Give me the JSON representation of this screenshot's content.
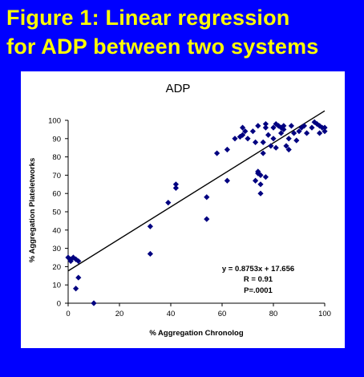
{
  "slide": {
    "title_line1": "Figure 1: Linear regression",
    "title_line2": "for ADP between two systems",
    "background_color": "#0000ff",
    "title_color": "#ffff00"
  },
  "chart_data": {
    "type": "scatter",
    "title": "ADP",
    "xlabel": "% Aggregation Chronolog",
    "ylabel": "% Aggregation Plateletworks",
    "xlim": [
      0,
      100
    ],
    "ylim": [
      0,
      100
    ],
    "xticks": [
      0,
      20,
      40,
      60,
      80,
      100
    ],
    "yticks": [
      0,
      10,
      20,
      30,
      40,
      50,
      60,
      70,
      80,
      90,
      100
    ],
    "grid": false,
    "marker": "diamond",
    "marker_color": "#000080",
    "points": [
      [
        0,
        25
      ],
      [
        1,
        24
      ],
      [
        1,
        23
      ],
      [
        2,
        25
      ],
      [
        3,
        24
      ],
      [
        3,
        8
      ],
      [
        4,
        23
      ],
      [
        4,
        14
      ],
      [
        10,
        0
      ],
      [
        32,
        42
      ],
      [
        32,
        27
      ],
      [
        39,
        55
      ],
      [
        42,
        65
      ],
      [
        42,
        63
      ],
      [
        54,
        58
      ],
      [
        54,
        46
      ],
      [
        58,
        82
      ],
      [
        62,
        84
      ],
      [
        62,
        67
      ],
      [
        65,
        90
      ],
      [
        67,
        91
      ],
      [
        68,
        96
      ],
      [
        68,
        92
      ],
      [
        69,
        94
      ],
      [
        70,
        90
      ],
      [
        72,
        94
      ],
      [
        73,
        67
      ],
      [
        73,
        88
      ],
      [
        74,
        97
      ],
      [
        74,
        72
      ],
      [
        74,
        71
      ],
      [
        75,
        70
      ],
      [
        75,
        60
      ],
      [
        75,
        65
      ],
      [
        76,
        82
      ],
      [
        76,
        88
      ],
      [
        77,
        98
      ],
      [
        77,
        69
      ],
      [
        77,
        96
      ],
      [
        78,
        92
      ],
      [
        79,
        86
      ],
      [
        80,
        96
      ],
      [
        80,
        90
      ],
      [
        81,
        98
      ],
      [
        81,
        85
      ],
      [
        82,
        97
      ],
      [
        83,
        93
      ],
      [
        83,
        96
      ],
      [
        84,
        95
      ],
      [
        84,
        97
      ],
      [
        85,
        86
      ],
      [
        86,
        84
      ],
      [
        86,
        90
      ],
      [
        87,
        97
      ],
      [
        88,
        93
      ],
      [
        89,
        89
      ],
      [
        90,
        94
      ],
      [
        91,
        96
      ],
      [
        92,
        97
      ],
      [
        93,
        93
      ],
      [
        95,
        96
      ],
      [
        96,
        99
      ],
      [
        97,
        98
      ],
      [
        98,
        97
      ],
      [
        98,
        93
      ],
      [
        99,
        96
      ],
      [
        100,
        96
      ],
      [
        100,
        94
      ]
    ],
    "trendline": {
      "slope": 0.8753,
      "intercept": 17.656,
      "x_range": [
        0,
        100
      ]
    },
    "annotations": [
      "y = 0.8753x + 17.656",
      "R = 0.91",
      "P=.0001"
    ]
  }
}
